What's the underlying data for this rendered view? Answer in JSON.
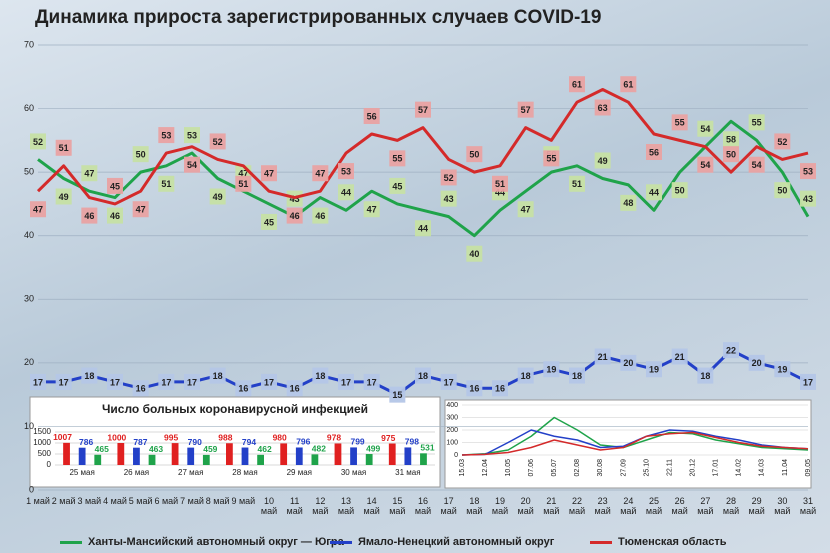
{
  "chart_data": [
    {
      "type": "line",
      "title": "Динамика прироста зарегистрированных случаев COVID-19",
      "categories": [
        "1 май",
        "2 май",
        "3 май",
        "4 май",
        "5 май",
        "6 май",
        "7 май",
        "8 май",
        "9 май",
        "10 май",
        "11 май",
        "12 май",
        "13 май",
        "14 май",
        "15 май",
        "16 май",
        "17 май",
        "18 май",
        "19 май",
        "20 май",
        "21 май",
        "22 май",
        "23 май",
        "24 май",
        "25 май",
        "26 май",
        "27 май",
        "28 май",
        "29 май",
        "30 май",
        "31 май"
      ],
      "series": [
        {
          "name": "Ханты-Мансийский автономный округ — Югра",
          "color": "#1fa34a",
          "label_fill": "#c6e0a4",
          "values": [
            52,
            49,
            47,
            46,
            50,
            51,
            53,
            49,
            47,
            45,
            43,
            46,
            44,
            47,
            45,
            44,
            43,
            40,
            44,
            47,
            50,
            51,
            49,
            48,
            44,
            50,
            54,
            58,
            55,
            50,
            43
          ]
        },
        {
          "name": "Ямало-Ненецкий автономный округ",
          "color": "#2340c8",
          "label_fill": "#b4c6e7",
          "values": [
            17,
            17,
            18,
            17,
            16,
            17,
            17,
            18,
            16,
            17,
            16,
            18,
            17,
            17,
            15,
            18,
            17,
            16,
            16,
            18,
            19,
            18,
            21,
            20,
            19,
            21,
            18,
            22,
            20,
            19,
            17
          ]
        },
        {
          "name": "Тюменская область",
          "color": "#d42a2a",
          "label_fill": "#e9a2a2",
          "values": [
            47,
            51,
            46,
            45,
            47,
            53,
            54,
            52,
            51,
            47,
            46,
            47,
            53,
            56,
            55,
            57,
            52,
            50,
            51,
            57,
            55,
            61,
            63,
            61,
            56,
            55,
            54,
            50,
            54,
            52,
            53
          ]
        }
      ],
      "ylim": [
        0,
        70
      ],
      "yticks": [
        0,
        10,
        20,
        30,
        40,
        50,
        60,
        70
      ],
      "grid": true
    },
    {
      "type": "bar",
      "title": "Число больных коронавирусной инфекцией",
      "categories": [
        "25 мая",
        "26 мая",
        "27 мая",
        "28 мая",
        "29 мая",
        "30 мая",
        "31 мая"
      ],
      "series": [
        {
          "color": "#e02020",
          "values": [
            1007,
            1000,
            995,
            988,
            980,
            978,
            975
          ]
        },
        {
          "color": "#2340c8",
          "values": [
            786,
            787,
            790,
            794,
            796,
            799,
            798
          ]
        },
        {
          "color": "#1fa34a",
          "values": [
            465,
            463,
            459,
            462,
            482,
            499,
            531
          ]
        }
      ],
      "ylim": [
        0,
        1500
      ],
      "yticks": [
        0,
        500,
        1000,
        1500
      ],
      "grid": true
    },
    {
      "type": "line",
      "categories": [
        "15.03",
        "12.04",
        "10.05",
        "07.06",
        "05.07",
        "02.08",
        "30.08",
        "27.09",
        "25.10",
        "22.11",
        "20.12",
        "17.01",
        "14.02",
        "14.03",
        "11.04",
        "09.05"
      ],
      "series": [
        {
          "color": "#1fa34a",
          "values": [
            0,
            10,
            40,
            150,
            300,
            200,
            80,
            60,
            120,
            180,
            170,
            120,
            90,
            60,
            50,
            40
          ]
        },
        {
          "color": "#2340c8",
          "values": [
            0,
            5,
            100,
            200,
            150,
            120,
            60,
            70,
            150,
            200,
            190,
            150,
            120,
            80,
            60,
            50
          ]
        },
        {
          "color": "#d42a2a",
          "values": [
            0,
            5,
            20,
            60,
            120,
            80,
            40,
            60,
            150,
            170,
            180,
            140,
            100,
            70,
            60,
            50
          ]
        }
      ],
      "ylim": [
        0,
        400
      ],
      "yticks": [
        0,
        100,
        200,
        300,
        400
      ],
      "grid": true
    }
  ]
}
